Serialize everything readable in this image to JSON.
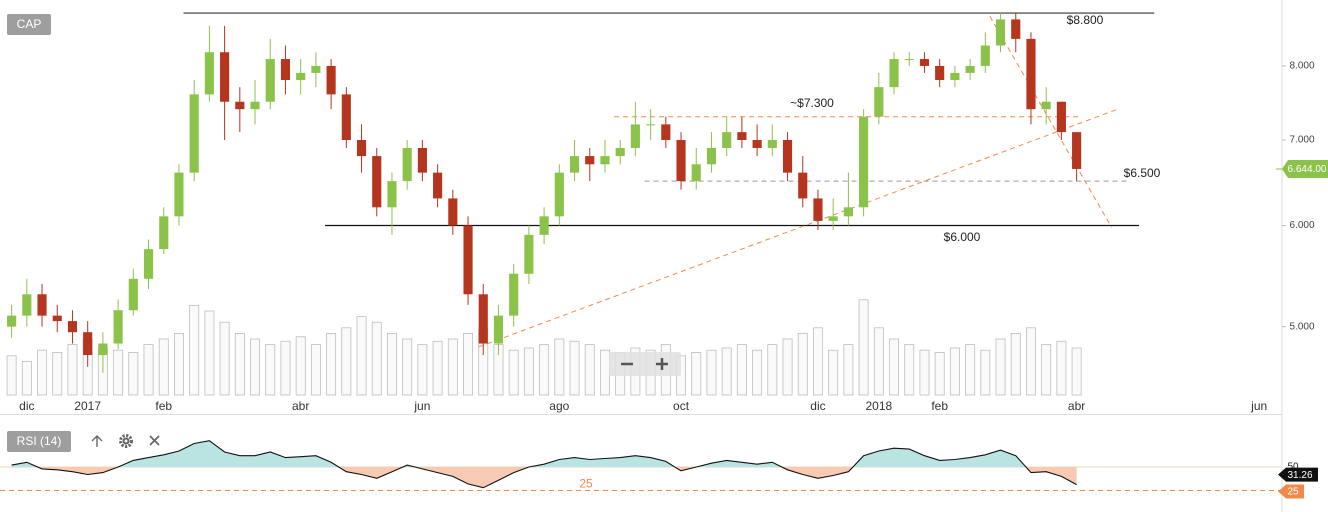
{
  "chart_data": {
    "type": "candlestick",
    "title": "CAP",
    "log_scale": true,
    "up_color": "#8bc34a",
    "down_color": "#b5351f",
    "categories": [
      null,
      "dic",
      null,
      null,
      null,
      "2017",
      null,
      null,
      null,
      null,
      "feb",
      null,
      null,
      null,
      null,
      null,
      null,
      null,
      null,
      "abr",
      null,
      null,
      null,
      null,
      null,
      null,
      null,
      "jun",
      null,
      null,
      null,
      null,
      null,
      null,
      null,
      null,
      "ago",
      null,
      null,
      null,
      null,
      null,
      null,
      null,
      "oct",
      null,
      null,
      null,
      null,
      null,
      null,
      null,
      null,
      "dic",
      null,
      null,
      null,
      "2018",
      null,
      null,
      null,
      "feb",
      null,
      null,
      null,
      null,
      null,
      null,
      null,
      null,
      "abr",
      null,
      null,
      null,
      null,
      null,
      null,
      null,
      null,
      null,
      null,
      null,
      "jun",
      null
    ],
    "open": [
      5.0,
      5.1,
      5.3,
      5.1,
      5.05,
      4.95,
      4.75,
      4.85,
      5.15,
      5.45,
      5.75,
      6.1,
      6.6,
      7.6,
      8.2,
      7.5,
      7.4,
      7.5,
      8.1,
      7.8,
      7.9,
      8.0,
      7.6,
      7.0,
      6.8,
      6.2,
      6.5,
      6.9,
      6.6,
      6.3,
      6.0,
      5.3,
      4.85,
      5.1,
      5.5,
      5.9,
      6.1,
      6.6,
      6.8,
      6.7,
      6.8,
      6.9,
      7.2,
      7.2,
      7.0,
      6.5,
      6.7,
      6.9,
      7.1,
      7.0,
      6.9,
      7.0,
      6.6,
      6.3,
      6.05,
      6.1,
      6.2,
      7.3,
      7.7,
      8.1,
      8.1,
      8.0,
      7.8,
      7.9,
      8.0,
      8.3,
      8.7,
      8.4,
      7.4,
      7.5,
      7.1,
      null,
      null,
      null,
      null,
      null,
      null,
      null,
      null,
      null,
      null,
      null,
      null,
      null
    ],
    "high": [
      5.2,
      5.45,
      5.4,
      5.2,
      5.15,
      5.05,
      4.95,
      5.25,
      5.55,
      5.85,
      6.2,
      6.7,
      7.8,
      8.6,
      8.6,
      7.7,
      7.8,
      8.4,
      8.3,
      8.1,
      8.2,
      8.1,
      7.7,
      7.2,
      6.9,
      6.6,
      7.0,
      7.0,
      6.7,
      6.4,
      6.1,
      5.4,
      5.2,
      5.6,
      6.0,
      6.2,
      6.7,
      7.0,
      6.9,
      7.0,
      7.0,
      7.5,
      7.4,
      7.3,
      7.1,
      6.9,
      7.1,
      7.3,
      7.3,
      7.2,
      7.2,
      7.1,
      6.8,
      6.4,
      6.3,
      6.6,
      7.4,
      7.9,
      8.2,
      8.2,
      8.2,
      8.1,
      8.0,
      8.1,
      8.5,
      8.8,
      8.8,
      8.5,
      7.7,
      7.5,
      7.1,
      null,
      null,
      null,
      null,
      null,
      null,
      null,
      null,
      null,
      null,
      null,
      null,
      null
    ],
    "low": [
      4.9,
      5.0,
      5.0,
      4.95,
      4.85,
      4.65,
      4.6,
      4.8,
      5.1,
      5.35,
      5.7,
      6.0,
      6.5,
      7.5,
      7.0,
      7.1,
      7.2,
      7.4,
      7.6,
      7.6,
      7.7,
      7.4,
      6.9,
      6.6,
      6.1,
      5.9,
      6.4,
      6.5,
      6.2,
      5.9,
      5.2,
      4.75,
      4.75,
      5.0,
      5.4,
      5.8,
      6.0,
      6.5,
      6.5,
      6.6,
      6.7,
      6.8,
      7.0,
      6.9,
      6.4,
      6.4,
      6.6,
      6.8,
      6.9,
      6.8,
      6.8,
      6.5,
      6.2,
      5.95,
      5.95,
      6.0,
      6.1,
      7.2,
      7.6,
      8.0,
      7.9,
      7.7,
      7.7,
      7.8,
      7.9,
      8.2,
      8.2,
      7.2,
      7.2,
      7.0,
      6.5,
      null,
      null,
      null,
      null,
      null,
      null,
      null,
      null,
      null,
      null,
      null,
      null,
      null
    ],
    "close": [
      5.1,
      5.3,
      5.1,
      5.05,
      4.95,
      4.75,
      4.85,
      5.15,
      5.45,
      5.75,
      6.1,
      6.6,
      7.6,
      8.2,
      7.5,
      7.4,
      7.5,
      8.1,
      7.8,
      7.9,
      8.0,
      7.6,
      7.0,
      6.8,
      6.2,
      6.5,
      6.9,
      6.6,
      6.3,
      6.0,
      5.3,
      4.85,
      5.1,
      5.5,
      5.9,
      6.1,
      6.6,
      6.8,
      6.7,
      6.8,
      6.9,
      7.2,
      7.2,
      7.0,
      6.5,
      6.7,
      6.9,
      7.1,
      7.0,
      6.9,
      7.0,
      6.6,
      6.3,
      6.05,
      6.1,
      6.2,
      7.3,
      7.7,
      8.1,
      8.1,
      8.0,
      7.8,
      7.9,
      8.0,
      8.3,
      8.7,
      8.4,
      7.4,
      7.5,
      7.1,
      6.644,
      null,
      null,
      null,
      null,
      null,
      null,
      null,
      null,
      null,
      null,
      null,
      null,
      null
    ],
    "ylim": [
      4.42,
      9.01
    ],
    "yticks": [
      {
        "value": 8,
        "label": "8.000"
      },
      {
        "value": 7,
        "label": "7.000"
      },
      {
        "value": 6,
        "label": "6.000"
      },
      {
        "value": 5,
        "label": "5.000"
      }
    ],
    "last_price": {
      "value": 6.644,
      "label": "6.644.00",
      "color": "#8bc34a"
    },
    "volume": {
      "color": "#bdbdbd",
      "ylim": [
        0,
        100
      ],
      "values": [
        35,
        30,
        40,
        38,
        45,
        50,
        42,
        40,
        38,
        45,
        50,
        55,
        80,
        75,
        65,
        55,
        50,
        45,
        48,
        52,
        45,
        55,
        60,
        70,
        65,
        55,
        50,
        45,
        48,
        50,
        55,
        60,
        45,
        40,
        42,
        45,
        50,
        48,
        45,
        40,
        38,
        42,
        40,
        45,
        35,
        38,
        40,
        42,
        45,
        40,
        45,
        50,
        55,
        60,
        40,
        45,
        85,
        60,
        50,
        45,
        40,
        38,
        42,
        45,
        40,
        50,
        55,
        60,
        45,
        48,
        42,
        null,
        null,
        null,
        null,
        null,
        null,
        null,
        null,
        null,
        null,
        null,
        null,
        null
      ]
    },
    "levels": [
      {
        "value": 8.8,
        "label": "$8.800",
        "from": 11.3,
        "to": 75.1,
        "color": "#333333",
        "dashed": false
      },
      {
        "value": 7.3,
        "label": "~$7.300",
        "from": 39.6,
        "to": 70.2,
        "color": "#f08a4b",
        "dashed": true
      },
      {
        "value": 6.5,
        "label": "$6.500",
        "from": 41.6,
        "to": 73.5,
        "color": "#999999",
        "dashed": true
      },
      {
        "value": 6.0,
        "label": "$6.000",
        "from": 20.6,
        "to": 74.1,
        "color": "#111111",
        "dashed": false
      }
    ],
    "trendlines": [
      {
        "x": [
          30.7,
          72.7
        ],
        "y": [
          4.82,
          7.4
        ],
        "color": "#f08a4b"
      },
      {
        "x": [
          64.3,
          72.3
        ],
        "y": [
          8.75,
          5.98
        ],
        "color": "#f08a4b"
      }
    ],
    "rsi": {
      "title": "RSI (14)",
      "values": [
        52,
        55,
        48,
        47,
        45,
        42,
        44,
        50,
        57,
        60,
        63,
        67,
        75,
        78,
        66,
        62,
        62,
        66,
        60,
        61,
        62,
        55,
        45,
        42,
        38,
        45,
        52,
        48,
        44,
        40,
        32,
        28,
        36,
        44,
        50,
        53,
        58,
        60,
        58,
        59,
        60,
        62,
        60,
        56,
        46,
        50,
        54,
        57,
        55,
        53,
        55,
        47,
        42,
        38,
        41,
        45,
        62,
        67,
        70,
        69,
        62,
        57,
        58,
        60,
        63,
        68,
        62,
        44,
        45,
        40,
        31.26,
        null,
        null,
        null,
        null,
        null,
        null,
        null,
        null,
        null,
        null,
        null,
        null,
        null
      ],
      "ylim": [
        0,
        100
      ],
      "yticks": [
        50
      ],
      "level": 25,
      "level_color": "#f08a4b",
      "above_color": "#b9e4e1",
      "below_color": "#f8c9b3"
    }
  }
}
